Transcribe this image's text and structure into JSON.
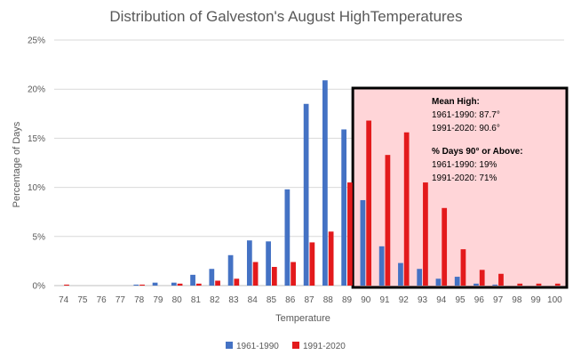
{
  "chart_data": {
    "type": "bar",
    "title": "Distribution of Galveston's August HighTemperatures",
    "xlabel": "Temperature",
    "ylabel": "Percentage of Days",
    "ylim": [
      0,
      25
    ],
    "yticks": [
      "0%",
      "5%",
      "10%",
      "15%",
      "20%",
      "25%"
    ],
    "grid": true,
    "legend_position": "bottom",
    "categories": [
      "74",
      "75",
      "76",
      "77",
      "78",
      "79",
      "80",
      "81",
      "82",
      "83",
      "84",
      "85",
      "86",
      "87",
      "88",
      "89",
      "90",
      "91",
      "92",
      "93",
      "94",
      "95",
      "96",
      "97",
      "98",
      "99",
      "100"
    ],
    "series": [
      {
        "name": "1961-1990",
        "color": "#4472c4",
        "values": [
          0,
          0,
          0,
          0,
          0.1,
          0.3,
          0.3,
          1.1,
          1.7,
          3.1,
          4.6,
          4.5,
          9.8,
          18.5,
          20.9,
          15.9,
          8.7,
          4.0,
          2.3,
          1.7,
          0.7,
          0.9,
          0.2,
          0.1,
          0,
          0,
          0
        ]
      },
      {
        "name": "1991-2020",
        "color": "#e31a1c",
        "values": [
          0.1,
          0,
          0,
          0,
          0.1,
          0,
          0.2,
          0.2,
          0.5,
          0.7,
          2.4,
          1.9,
          2.4,
          4.4,
          5.5,
          10.5,
          16.8,
          13.3,
          15.6,
          10.5,
          7.9,
          3.7,
          1.6,
          1.2,
          0.2,
          0.2,
          0.2
        ]
      }
    ],
    "annotation": {
      "mean_title": "Mean High:",
      "mean_lines": [
        "1961-1990: 87.7°",
        "1991-2020: 90.6°"
      ],
      "pct_title": "% Days 90° or Above:",
      "pct_lines": [
        "1961-1990: 19%",
        "1991-2020: 71%"
      ],
      "highlight_from": "90",
      "highlight_to": "100"
    }
  }
}
